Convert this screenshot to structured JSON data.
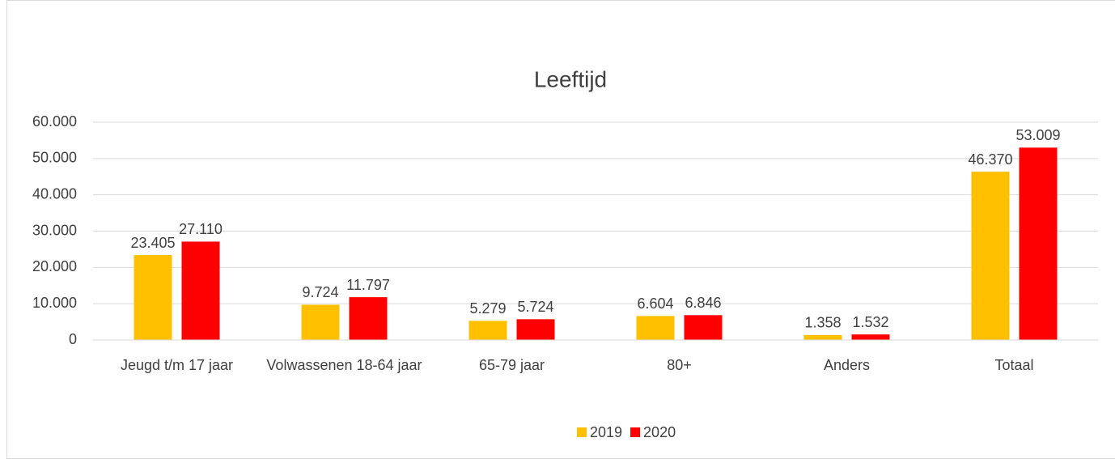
{
  "chart_data": {
    "type": "bar",
    "title": "Leeftijd",
    "categories": [
      "Jeugd t/m 17 jaar",
      "Volwassenen 18-64 jaar",
      "65-79 jaar",
      "80+",
      "Anders",
      "Totaal"
    ],
    "series": [
      {
        "name": "2019",
        "color": "#ffc000",
        "values": [
          23405,
          9724,
          5279,
          6604,
          1358,
          46370
        ],
        "value_labels": [
          "23.405",
          "9.724",
          "5.279",
          "6.604",
          "1.358",
          "46.370"
        ]
      },
      {
        "name": "2020",
        "color": "#ff0000",
        "values": [
          27110,
          11797,
          5724,
          6846,
          1532,
          53009
        ],
        "value_labels": [
          "27.110",
          "11.797",
          "5.724",
          "6.846",
          "1.532",
          "53.009"
        ]
      }
    ],
    "ylim": [
      0,
      60000
    ],
    "yticks": [
      0,
      {
        "value": 10000,
        "label": "10.000"
      },
      {
        "value": 20000,
        "label": "20.000"
      },
      {
        "value": 30000,
        "label": "30.000"
      },
      {
        "value": 40000,
        "label": "40.000"
      },
      {
        "value": 50000,
        "label": "50.000"
      },
      {
        "value": 60000,
        "label": "60.000"
      }
    ],
    "grid": true,
    "legend": "bottom"
  }
}
